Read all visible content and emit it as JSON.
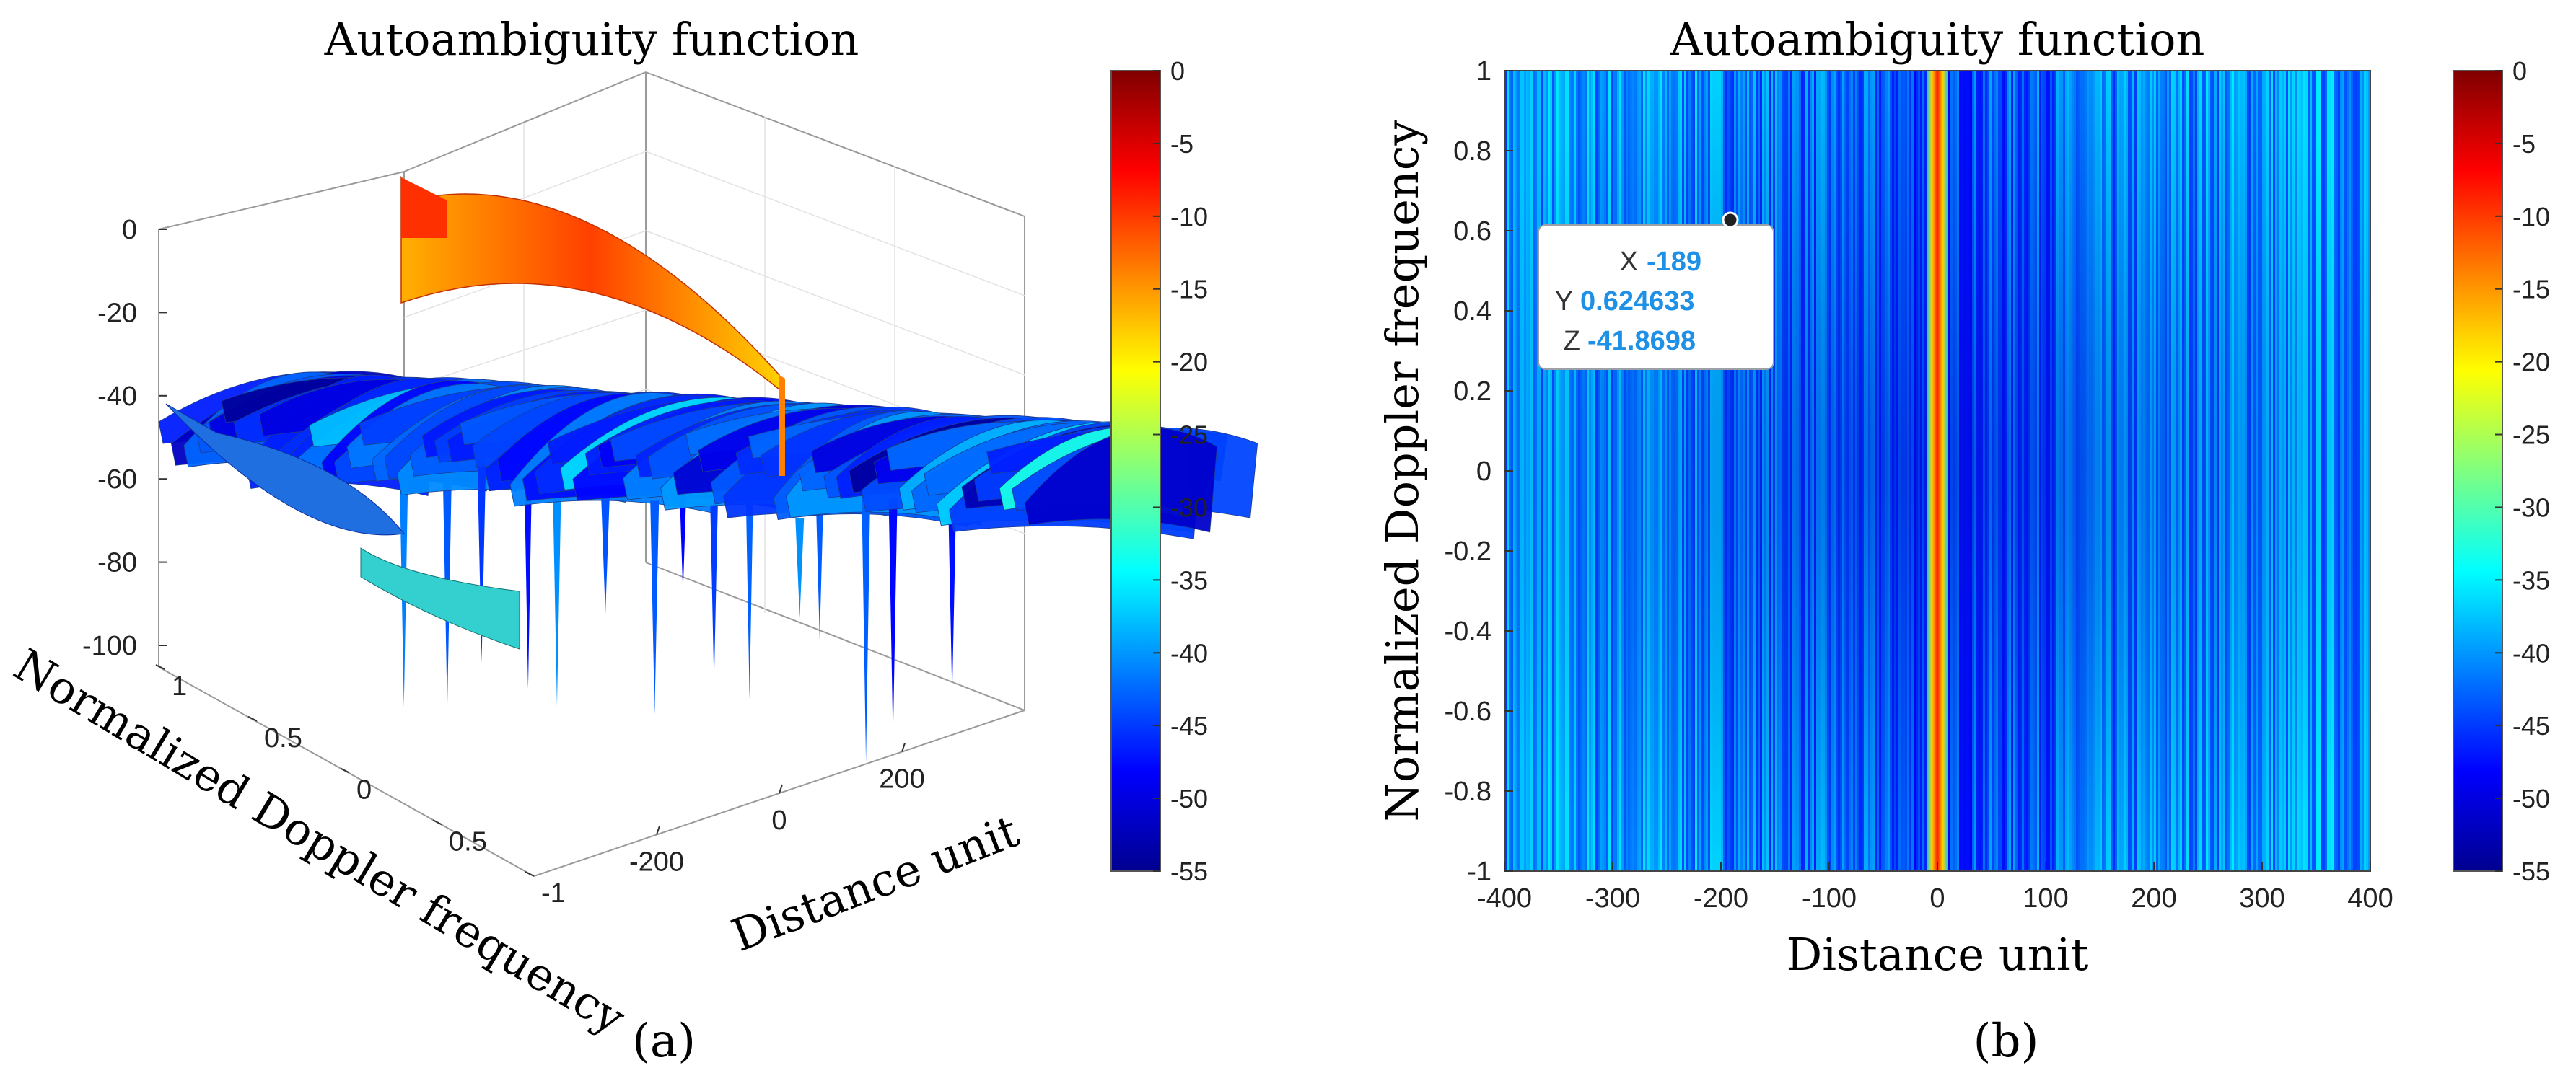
{
  "chart_data": [
    {
      "type": "surface3d",
      "title": "Autoambiguity function",
      "xlabel": "Normalized Doppler frequency",
      "ylabel": "Distance unit",
      "zlabel": "",
      "x_ticks": [
        "1",
        "0.5",
        "0",
        "0.5",
        "-1"
      ],
      "y_ticks": [
        "-200",
        "0",
        "200"
      ],
      "z_ticks": [
        "0",
        "-20",
        "-40",
        "-60",
        "-80",
        "-100"
      ],
      "zlim": [
        -100,
        0
      ],
      "xlim": [
        -1,
        1
      ],
      "ylim": [
        -400,
        400
      ],
      "colormap": "jet",
      "colorbar": {
        "clim": [
          -55,
          0
        ],
        "ticks": [
          "0",
          "-5",
          "-10",
          "-15",
          "-20",
          "-25",
          "-30",
          "-35",
          "-40",
          "-45",
          "-50",
          "-55"
        ]
      },
      "peak": {
        "distance": 0,
        "doppler": 0,
        "value": 0
      }
    },
    {
      "type": "heatmap",
      "title": "Autoambiguity function",
      "xlabel": "Distance unit",
      "ylabel": "Normalized Doppler frequency",
      "xlim": [
        -400,
        400
      ],
      "ylim": [
        -1,
        1
      ],
      "x_ticks": [
        "-400",
        "-300",
        "-200",
        "-100",
        "0",
        "100",
        "200",
        "300",
        "400"
      ],
      "y_ticks": [
        "1",
        "0.8",
        "0.6",
        "0.4",
        "0.2",
        "0",
        "-0.2",
        "-0.4",
        "-0.6",
        "-0.8",
        "-1"
      ],
      "colormap": "jet",
      "colorbar": {
        "clim": [
          -55,
          0
        ],
        "ticks": [
          "0",
          "-5",
          "-10",
          "-15",
          "-20",
          "-25",
          "-30",
          "-35",
          "-40",
          "-45",
          "-50",
          "-55"
        ]
      },
      "peak_column": {
        "distance": 0,
        "value": 0
      },
      "datatip": {
        "x_label": "X",
        "x": "-189",
        "y_label": "Y",
        "y": "0.624633",
        "z_label": "Z",
        "z": "-41.8698"
      }
    }
  ],
  "panels": {
    "a": "(a)",
    "b": "(b)"
  }
}
